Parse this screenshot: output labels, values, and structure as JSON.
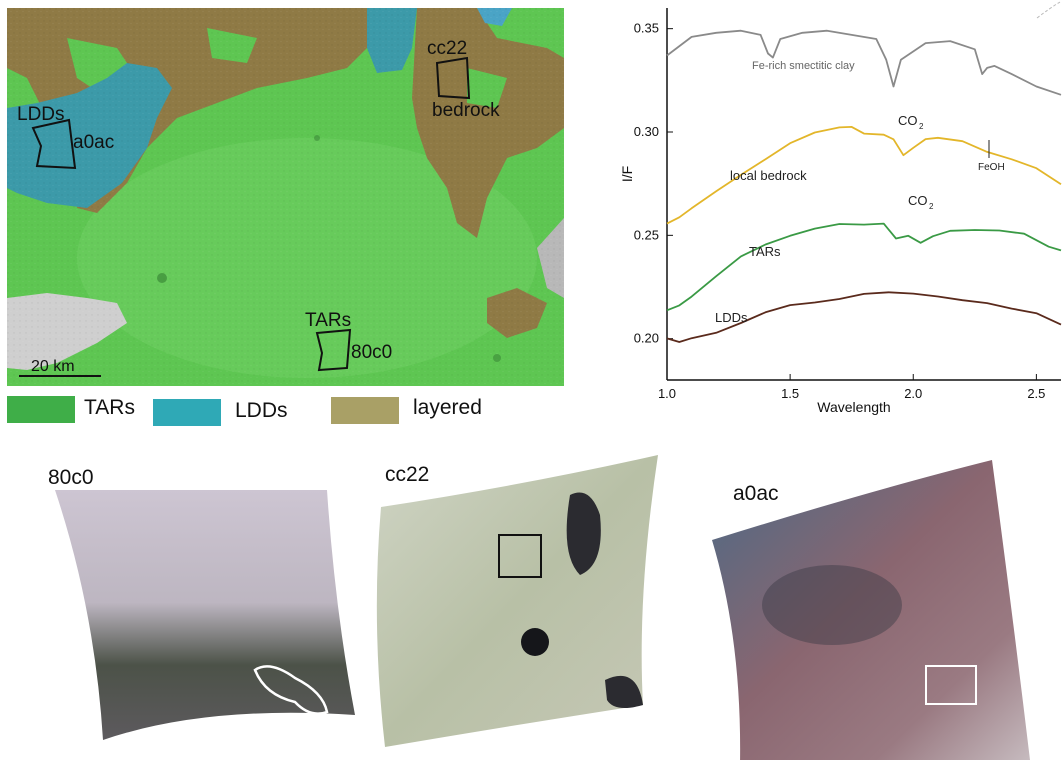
{
  "map": {
    "scale_bar_label": "20 km",
    "site_labels": {
      "lvds_site": "LDDs",
      "a0ac": "a0ac",
      "cc22": "cc22",
      "bedrock": "bedrock",
      "tars_site": "TARs",
      "80c0": "80c0"
    },
    "colors": {
      "tars": "#58c84a",
      "ldds": "#3c9aa9",
      "layered": "#8a7a46"
    }
  },
  "legend": [
    {
      "label": "TARs",
      "color": "#3fae48"
    },
    {
      "label": "LDDs",
      "color": "#2fa9b6"
    },
    {
      "label": "layered",
      "color": "#a9a066"
    }
  ],
  "chart_data": {
    "type": "line",
    "xlabel": "Wavelength",
    "ylabel": "I/F",
    "xlim": [
      1.0,
      2.6
    ],
    "ylim": [
      0.18,
      0.36
    ],
    "x_ticks": [
      "1.0",
      "1.5",
      "2.0",
      "2.5"
    ],
    "y_ticks": [
      "0.20",
      "0.25",
      "0.30",
      "0.35"
    ],
    "series": [
      {
        "name": "Fe-rich smectitic clay",
        "color": "#8a8a8a",
        "x": [
          1.0,
          1.1,
          1.2,
          1.3,
          1.38,
          1.41,
          1.43,
          1.46,
          1.55,
          1.65,
          1.75,
          1.85,
          1.89,
          1.92,
          1.95,
          2.05,
          2.15,
          2.25,
          2.28,
          2.3,
          2.33,
          2.4,
          2.5,
          2.6
        ],
        "y": [
          0.337,
          0.346,
          0.348,
          0.349,
          0.347,
          0.338,
          0.336,
          0.345,
          0.348,
          0.349,
          0.347,
          0.345,
          0.335,
          0.322,
          0.335,
          0.343,
          0.344,
          0.34,
          0.328,
          0.331,
          0.332,
          0.328,
          0.322,
          0.318
        ]
      },
      {
        "name": "local bedrock",
        "color": "#e3b62a",
        "x": [
          1.0,
          1.05,
          1.1,
          1.2,
          1.3,
          1.4,
          1.5,
          1.6,
          1.7,
          1.75,
          1.8,
          1.88,
          1.92,
          1.96,
          2.0,
          2.05,
          2.1,
          2.2,
          2.3,
          2.4,
          2.5,
          2.6
        ],
        "y": [
          0.255,
          0.258,
          0.263,
          0.272,
          0.28,
          0.287,
          0.294,
          0.299,
          0.302,
          0.303,
          0.3,
          0.299,
          0.296,
          0.288,
          0.292,
          0.297,
          0.298,
          0.296,
          0.29,
          0.286,
          0.282,
          0.275
        ]
      },
      {
        "name": "TARs",
        "color": "#3a9a45",
        "x": [
          1.0,
          1.05,
          1.1,
          1.2,
          1.3,
          1.4,
          1.5,
          1.6,
          1.7,
          1.8,
          1.88,
          1.93,
          1.98,
          2.03,
          2.08,
          2.15,
          2.25,
          2.35,
          2.45,
          2.55,
          2.6
        ],
        "y": [
          0.213,
          0.216,
          0.221,
          0.231,
          0.24,
          0.245,
          0.249,
          0.253,
          0.256,
          0.256,
          0.256,
          0.248,
          0.249,
          0.246,
          0.25,
          0.253,
          0.253,
          0.252,
          0.25,
          0.244,
          0.243
        ]
      },
      {
        "name": "LDDs",
        "color": "#5a2a1c",
        "x": [
          1.0,
          1.05,
          1.1,
          1.2,
          1.3,
          1.4,
          1.5,
          1.6,
          1.7,
          1.8,
          1.9,
          2.0,
          2.1,
          2.2,
          2.3,
          2.4,
          2.5,
          2.6
        ],
        "y": [
          0.2,
          0.199,
          0.201,
          0.203,
          0.207,
          0.212,
          0.216,
          0.218,
          0.22,
          0.222,
          0.222,
          0.221,
          0.22,
          0.219,
          0.218,
          0.215,
          0.212,
          0.206
        ]
      }
    ],
    "annotations": {
      "co2_1": "CO",
      "co2_2": "CO",
      "co2_sub": "2",
      "feoh": "FeOH",
      "label_clay": "Fe-rich smectitic clay",
      "label_bedrock": "local bedrock",
      "label_tars": "TARs",
      "label_ldds": "LDDs"
    }
  },
  "thumbnails": [
    {
      "label": "80c0"
    },
    {
      "label": "cc22"
    },
    {
      "label": "a0ac"
    }
  ]
}
